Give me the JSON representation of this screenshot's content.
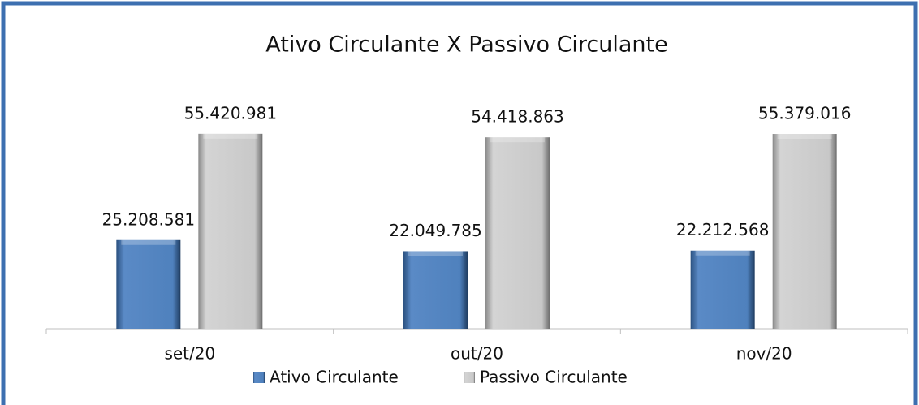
{
  "chart_data": {
    "type": "bar",
    "title": "Ativo Circulante X Passivo Circulante",
    "categories": [
      "set/20",
      "out/20",
      "nov/20"
    ],
    "series": [
      {
        "name": "Ativo Circulante",
        "color": "#4f81bd",
        "values": [
          25208581,
          22049785,
          22212568
        ],
        "value_labels": [
          "25.208.581",
          "22.049.785",
          "22.212.568"
        ]
      },
      {
        "name": "Passivo Circulante",
        "color": "#c6c6c6",
        "values": [
          55420981,
          54418863,
          55379016
        ],
        "value_labels": [
          "55.420.981",
          "54.418.863",
          "55.379.016"
        ]
      }
    ],
    "ylim": [
      0,
      60000000
    ],
    "legend": "bottom"
  }
}
